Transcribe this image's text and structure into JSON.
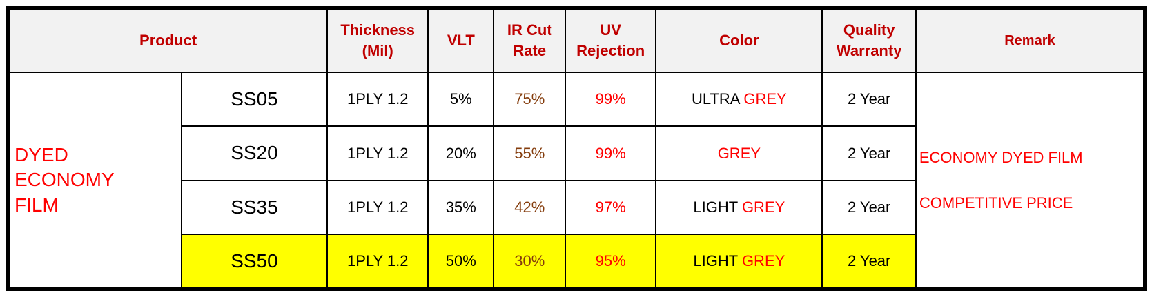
{
  "header": {
    "product": "Product",
    "thickness": [
      "Thickness",
      "(Mil)"
    ],
    "vlt": "VLT",
    "ir_cut": [
      "IR Cut",
      "Rate"
    ],
    "uv": [
      "UV",
      "Rejection"
    ],
    "color": "Color",
    "warranty": [
      "Quality",
      "Warranty"
    ],
    "remark": "Remark"
  },
  "group": {
    "label_lines": [
      "DYED",
      "ECONOMY",
      "FILM"
    ]
  },
  "rows": [
    {
      "code": "SS05",
      "thickness": "1PLY 1.2",
      "vlt": "5%",
      "ir_cut": "75%",
      "uv": "99%",
      "color_prefix": "ULTRA ",
      "color_main": "GREY",
      "warranty": "2 Year",
      "highlight": false
    },
    {
      "code": "SS20",
      "thickness": "1PLY 1.2",
      "vlt": "20%",
      "ir_cut": "55%",
      "uv": "99%",
      "color_prefix": "",
      "color_main": "GREY",
      "warranty": "2 Year",
      "highlight": false
    },
    {
      "code": "SS35",
      "thickness": "1PLY 1.2",
      "vlt": "35%",
      "ir_cut": "42%",
      "uv": "97%",
      "color_prefix": "LIGHT ",
      "color_main": "GREY",
      "warranty": "2 Year",
      "highlight": false
    },
    {
      "code": "SS50",
      "thickness": "1PLY 1.2",
      "vlt": "50%",
      "ir_cut": "30%",
      "uv": "95%",
      "color_prefix": "LIGHT ",
      "color_main": "GREY",
      "warranty": "2 Year",
      "highlight": true
    }
  ],
  "remark": {
    "lines": [
      "ECONOMY DYED FILM",
      "COMPETITIVE PRICE"
    ]
  },
  "colors": {
    "header_text": "#c00000",
    "header_bg": "#f2f2f2",
    "accent_red": "#ff0000",
    "ir_brown": "#843c0c",
    "highlight": "#ffff00",
    "border": "#000000"
  }
}
